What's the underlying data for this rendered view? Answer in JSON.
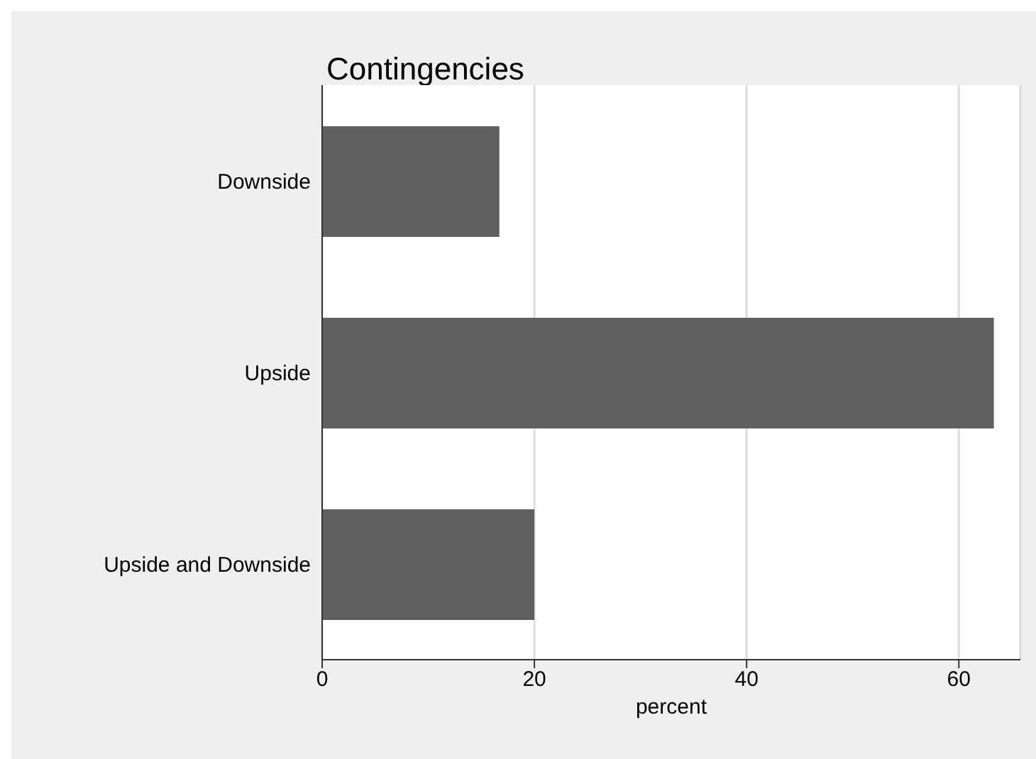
{
  "chart_data": {
    "type": "bar",
    "orientation": "horizontal",
    "title": "Contingencies",
    "xlabel": "percent",
    "categories": [
      "Downside",
      "Upside",
      "Upside and Downside"
    ],
    "values": [
      16.7,
      63.3,
      20.0
    ],
    "color": "#606060",
    "xlim": [
      0,
      65.8
    ],
    "xticks": [
      0,
      20,
      40,
      60
    ],
    "grid": "x"
  }
}
